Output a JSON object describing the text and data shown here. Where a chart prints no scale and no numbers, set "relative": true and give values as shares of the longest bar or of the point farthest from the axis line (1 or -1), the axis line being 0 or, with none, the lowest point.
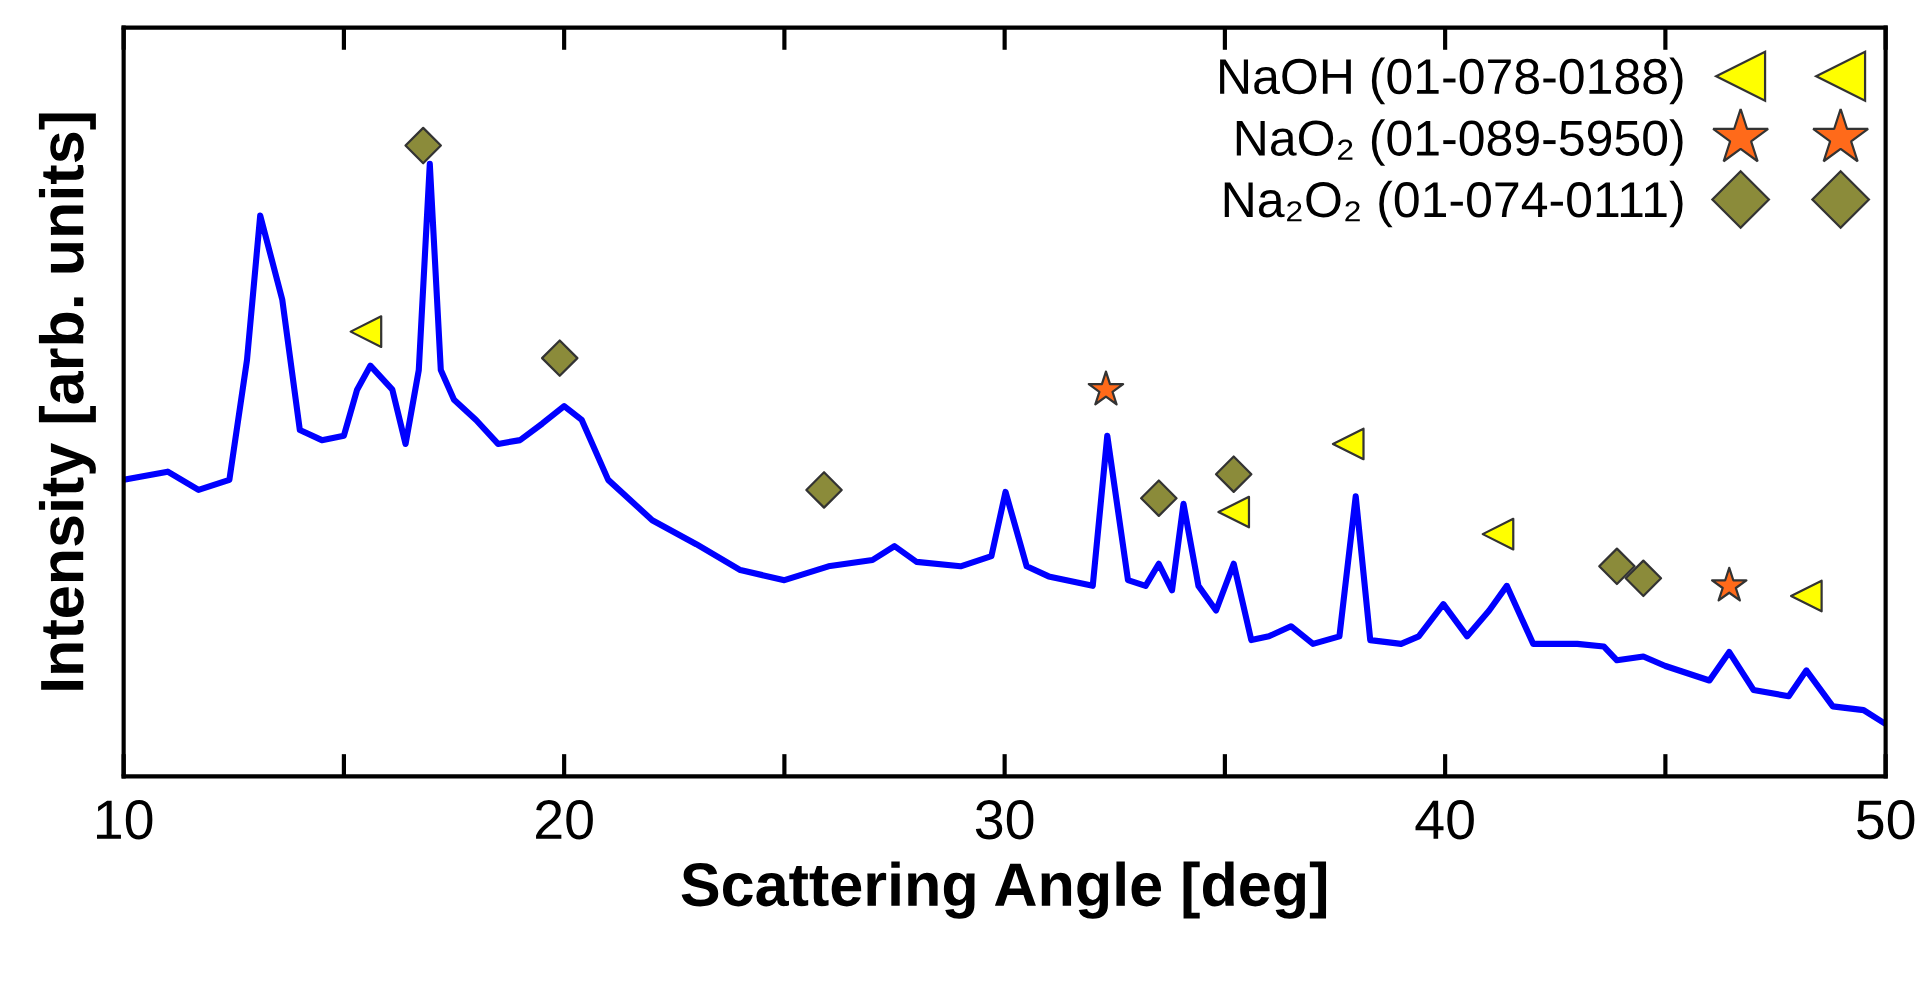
{
  "chart_data": {
    "type": "line",
    "xlabel": "Scattering Angle [deg]",
    "ylabel": "Intensity [arb. units]",
    "relative": true,
    "xlim": [
      10,
      50
    ],
    "xticks": [
      10,
      {
        "value": 15,
        "label": null
      },
      20,
      {
        "value": 25,
        "label": null
      },
      30,
      {
        "value": 35,
        "label": null
      },
      40,
      {
        "value": 45,
        "label": null
      },
      50
    ],
    "grid": false,
    "legend": "top right",
    "line_style": "solid",
    "marker": "none",
    "series": [
      {
        "color": "#0000ff",
        "x": [
          10,
          11,
          11.7,
          12.4,
          12.8,
          13.1,
          13.6,
          14,
          14.5,
          15,
          15.3,
          15.6,
          16.1,
          16.4,
          16.7,
          16.95,
          17.2,
          17.5,
          18,
          18.5,
          19,
          19.5,
          20,
          20.4,
          21,
          22,
          23,
          24,
          25,
          26,
          27,
          27.5,
          28,
          29,
          29.7,
          30.02,
          30.5,
          31,
          32,
          32.33,
          32.8,
          33.2,
          33.5,
          33.8,
          34.06,
          34.4,
          34.8,
          35.2,
          35.6,
          36,
          36.5,
          37,
          37.6,
          37.97,
          38.3,
          39,
          39.4,
          39.96,
          40.5,
          41,
          41.4,
          42,
          43,
          43.6,
          43.9,
          44.5,
          45,
          46,
          46.45,
          47,
          47.8,
          48.2,
          48.8,
          49.5,
          50
        ],
        "values": [
          0.47,
          0.483,
          0.454,
          0.47,
          0.66,
          0.889,
          0.756,
          0.549,
          0.533,
          0.54,
          0.613,
          0.651,
          0.613,
          0.527,
          0.644,
          0.971,
          0.644,
          0.597,
          0.565,
          0.527,
          0.533,
          0.559,
          0.587,
          0.565,
          0.47,
          0.406,
          0.368,
          0.327,
          0.311,
          0.333,
          0.343,
          0.365,
          0.34,
          0.333,
          0.349,
          0.451,
          0.333,
          0.317,
          0.302,
          0.54,
          0.311,
          0.302,
          0.337,
          0.295,
          0.432,
          0.302,
          0.263,
          0.337,
          0.216,
          0.222,
          0.238,
          0.21,
          0.222,
          0.444,
          0.216,
          0.21,
          0.222,
          0.273,
          0.222,
          0.263,
          0.302,
          0.21,
          0.21,
          0.206,
          0.184,
          0.19,
          0.175,
          0.152,
          0.197,
          0.137,
          0.127,
          0.168,
          0.111,
          0.105,
          0.083
        ]
      },
      {
        "type": "scatter",
        "name": "NaOH (01-078-0188)",
        "marker": "triangle",
        "color": "#ffff00",
        "x": [
          15.5,
          35.2,
          37.8,
          41.2,
          48.2
        ],
        "values": [
          0.705,
          0.419,
          0.527,
          0.384,
          0.286
        ]
      },
      {
        "type": "scatter",
        "name": "NaO₂ (01-089-5950)",
        "marker": "star",
        "color": "#ff6a1a",
        "x": [
          32.3,
          46.45
        ],
        "values": [
          0.613,
          0.302
        ]
      },
      {
        "type": "scatter",
        "name": "Na₂O₂ (01-074-0111)",
        "marker": "diamond",
        "color": "#8b8b3a",
        "x": [
          16.8,
          19.9,
          25.9,
          33.5,
          35.2,
          43.9,
          44.5
        ],
        "values": [
          1.0,
          0.663,
          0.454,
          0.441,
          0.479,
          0.333,
          0.314
        ]
      }
    ]
  }
}
